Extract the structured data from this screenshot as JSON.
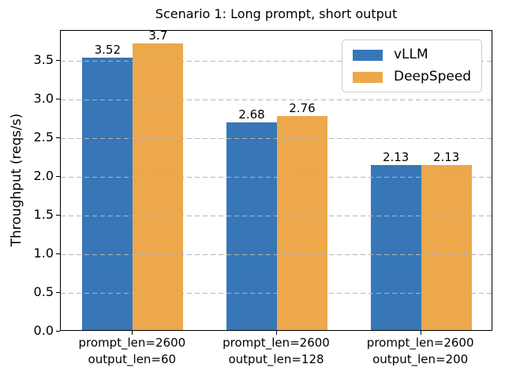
{
  "figure": {
    "kind": "matplotlib-bar-chart"
  },
  "chart_data": {
    "type": "bar",
    "title": "Scenario 1: Long prompt, short output",
    "xlabel": "",
    "ylabel": "Throughput (reqs/s)",
    "categories": [
      [
        "prompt_len=2600",
        "output_len=60"
      ],
      [
        "prompt_len=2600",
        "output_len=128"
      ],
      [
        "prompt_len=2600",
        "output_len=200"
      ]
    ],
    "series": [
      {
        "name": "vLLM",
        "color": "#3777b8",
        "values": [
          3.52,
          2.68,
          2.13
        ],
        "labels": [
          "3.52",
          "2.68",
          "2.13"
        ]
      },
      {
        "name": "DeepSpeed",
        "color": "#eca84a",
        "values": [
          3.7,
          2.76,
          2.13
        ],
        "labels": [
          "3.7",
          "2.76",
          "2.13"
        ]
      }
    ],
    "ylim": [
      0,
      3.885
    ],
    "yticks": [
      "0.0",
      "0.5",
      "1.0",
      "1.5",
      "2.0",
      "2.5",
      "3.0",
      "3.5"
    ],
    "grid": "horizontal dashed, drawn above bars",
    "legend_position": "upper right"
  },
  "colors": {
    "background": "#ffffff",
    "grid": "#b6b6b6",
    "spine": "#000000",
    "text": "#000000",
    "legend_border": "#cccccc"
  }
}
